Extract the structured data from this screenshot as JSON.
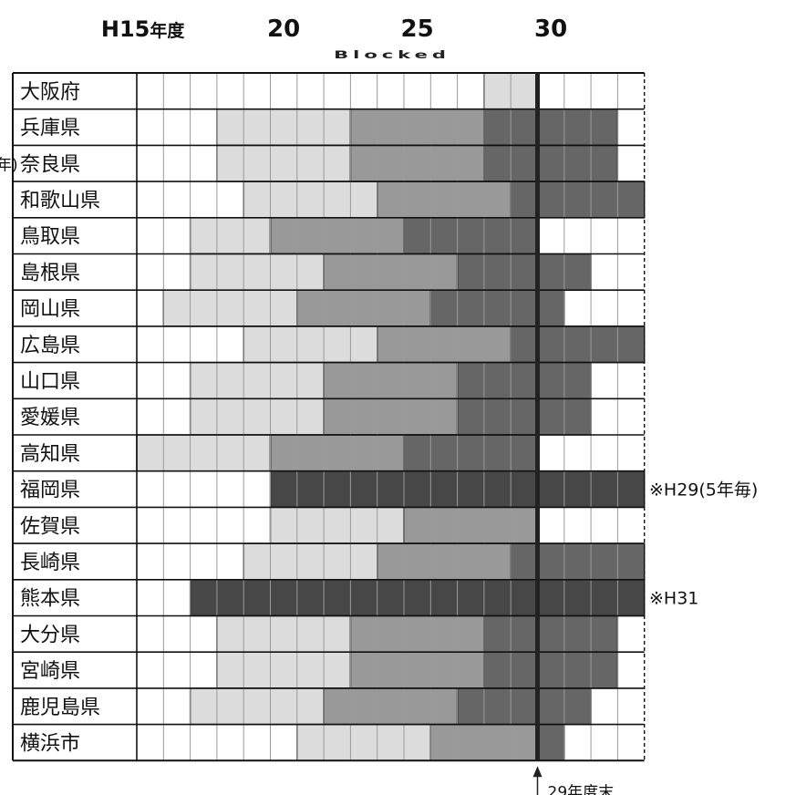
{
  "chart_data": {
    "type": "heatmap",
    "year_ticks": [
      {
        "label": "H15",
        "suffix": "年度",
        "year": 15
      },
      {
        "label": "20",
        "year": 20
      },
      {
        "label": "25",
        "year": 25
      },
      {
        "label": "30",
        "year": 30
      }
    ],
    "watermark": "Blocked",
    "cut_text": "年)",
    "first_half_year": 14.5,
    "colors": {
      "light": "#dcdcdc",
      "medium": "#999999",
      "dark": "#666666",
      "darkest": "#474747",
      "grid": "#9a9a9a",
      "frame": "#111111",
      "marker": "#222222"
    },
    "rows": [
      {
        "name": "大阪府",
        "segments": [
          [
            27.5,
            29.5,
            "light"
          ]
        ]
      },
      {
        "name": "兵庫県",
        "segments": [
          [
            17.5,
            22.5,
            "light"
          ],
          [
            22.5,
            27.5,
            "medium"
          ],
          [
            27.5,
            32.5,
            "dark"
          ]
        ]
      },
      {
        "name": "奈良県",
        "segments": [
          [
            17.5,
            22.5,
            "light"
          ],
          [
            22.5,
            27.5,
            "medium"
          ],
          [
            27.5,
            32.5,
            "dark"
          ]
        ]
      },
      {
        "name": "和歌山県",
        "segments": [
          [
            18.5,
            23.5,
            "light"
          ],
          [
            23.5,
            28.5,
            "medium"
          ],
          [
            28.5,
            33.5,
            "dark"
          ]
        ]
      },
      {
        "name": "鳥取県",
        "segments": [
          [
            16.5,
            19.5,
            "light"
          ],
          [
            19.5,
            24.5,
            "medium"
          ],
          [
            24.5,
            29.5,
            "dark"
          ]
        ]
      },
      {
        "name": "島根県",
        "segments": [
          [
            16.5,
            21.5,
            "light"
          ],
          [
            21.5,
            26.5,
            "medium"
          ],
          [
            26.5,
            31.5,
            "dark"
          ]
        ]
      },
      {
        "name": "岡山県",
        "segments": [
          [
            15.5,
            20.5,
            "light"
          ],
          [
            20.5,
            25.5,
            "medium"
          ],
          [
            25.5,
            30.5,
            "dark"
          ]
        ]
      },
      {
        "name": "広島県",
        "segments": [
          [
            18.5,
            23.5,
            "light"
          ],
          [
            23.5,
            28.5,
            "medium"
          ],
          [
            28.5,
            33.5,
            "dark"
          ]
        ]
      },
      {
        "name": "山口県",
        "segments": [
          [
            16.5,
            21.5,
            "light"
          ],
          [
            21.5,
            26.5,
            "medium"
          ],
          [
            26.5,
            31.5,
            "dark"
          ]
        ]
      },
      {
        "name": "愛媛県",
        "segments": [
          [
            16.5,
            21.5,
            "light"
          ],
          [
            21.5,
            26.5,
            "medium"
          ],
          [
            26.5,
            31.5,
            "dark"
          ]
        ]
      },
      {
        "name": "高知県",
        "segments": [
          [
            14.5,
            19.5,
            "light"
          ],
          [
            19.5,
            24.5,
            "medium"
          ],
          [
            24.5,
            29.5,
            "dark"
          ]
        ]
      },
      {
        "name": "福岡県",
        "segments": [
          [
            19.5,
            33.5,
            "darkest"
          ]
        ],
        "note": "※H29(5年毎)"
      },
      {
        "name": "佐賀県",
        "segments": [
          [
            19.5,
            24.5,
            "light"
          ],
          [
            24.5,
            29.5,
            "medium"
          ]
        ]
      },
      {
        "name": "長崎県",
        "segments": [
          [
            18.5,
            23.5,
            "light"
          ],
          [
            23.5,
            28.5,
            "medium"
          ],
          [
            28.5,
            33.5,
            "dark"
          ]
        ]
      },
      {
        "name": "熊本県",
        "segments": [
          [
            16.5,
            33.5,
            "darkest"
          ]
        ],
        "note": "※H31"
      },
      {
        "name": "大分県",
        "segments": [
          [
            17.5,
            22.5,
            "light"
          ],
          [
            22.5,
            27.5,
            "medium"
          ],
          [
            27.5,
            32.5,
            "dark"
          ]
        ]
      },
      {
        "name": "宮崎県",
        "segments": [
          [
            17.5,
            22.5,
            "light"
          ],
          [
            22.5,
            27.5,
            "medium"
          ],
          [
            27.5,
            32.5,
            "dark"
          ]
        ]
      },
      {
        "name": "鹿児島県",
        "segments": [
          [
            16.5,
            21.5,
            "light"
          ],
          [
            21.5,
            26.5,
            "medium"
          ],
          [
            26.5,
            31.5,
            "dark"
          ]
        ]
      },
      {
        "name": "横浜市",
        "segments": [
          [
            20.5,
            25.5,
            "light"
          ],
          [
            25.5,
            29.5,
            "medium"
          ],
          [
            29.5,
            30.5,
            "dark"
          ]
        ]
      }
    ],
    "marker": {
      "year": 29.5,
      "label": "29年度末"
    }
  }
}
